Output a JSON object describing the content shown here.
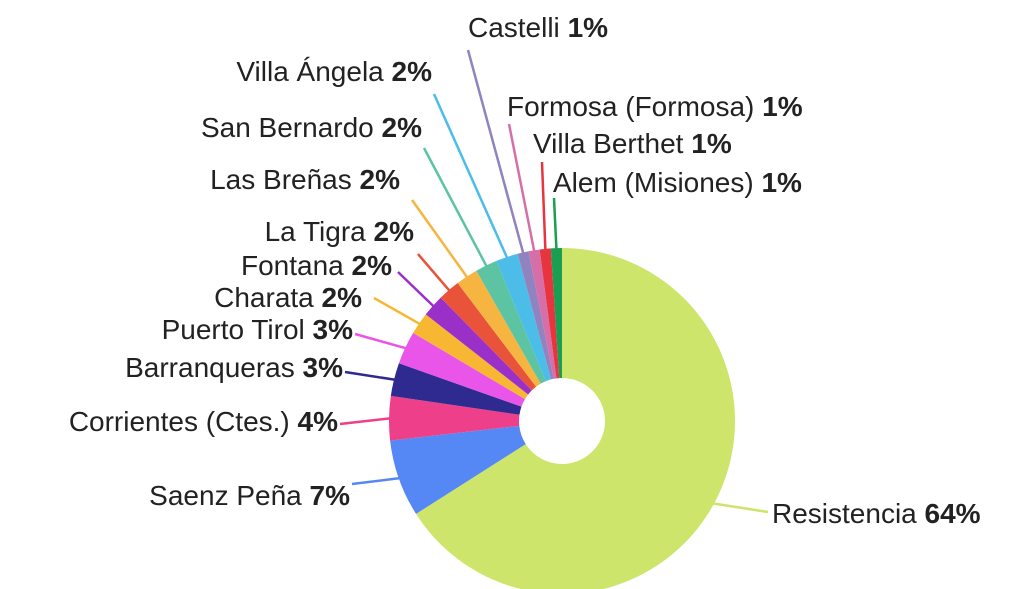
{
  "chart_data": {
    "type": "pie",
    "donut": true,
    "categories": [
      "Resistencia",
      "Saenz Peña",
      "Corrientes (Ctes.)",
      "Barranqueras",
      "Puerto Tirol",
      "Charata",
      "Fontana",
      "La Tigra",
      "Las Breñas",
      "San Bernardo",
      "Villa Ángela",
      "Castelli",
      "Formosa (Formosa)",
      "Villa Berthet",
      "Alem (Misiones)"
    ],
    "values": [
      64,
      7,
      4,
      3,
      3,
      2,
      2,
      2,
      2,
      2,
      2,
      1,
      1,
      1,
      1
    ],
    "value_labels": [
      "64%",
      "7%",
      "4%",
      "3%",
      "3%",
      "2%",
      "2%",
      "2%",
      "2%",
      "2%",
      "2%",
      "1%",
      "1%",
      "1%",
      "1%"
    ],
    "colors": [
      "#cde56a",
      "#5588f5",
      "#ee3f8a",
      "#2e2a8f",
      "#e855e8",
      "#f7b733",
      "#9b30c9",
      "#e9533a",
      "#f5b540",
      "#5cc4a3",
      "#4bbde8",
      "#9083c0",
      "#d66fa8",
      "#e8343f",
      "#1a9e50"
    ]
  }
}
